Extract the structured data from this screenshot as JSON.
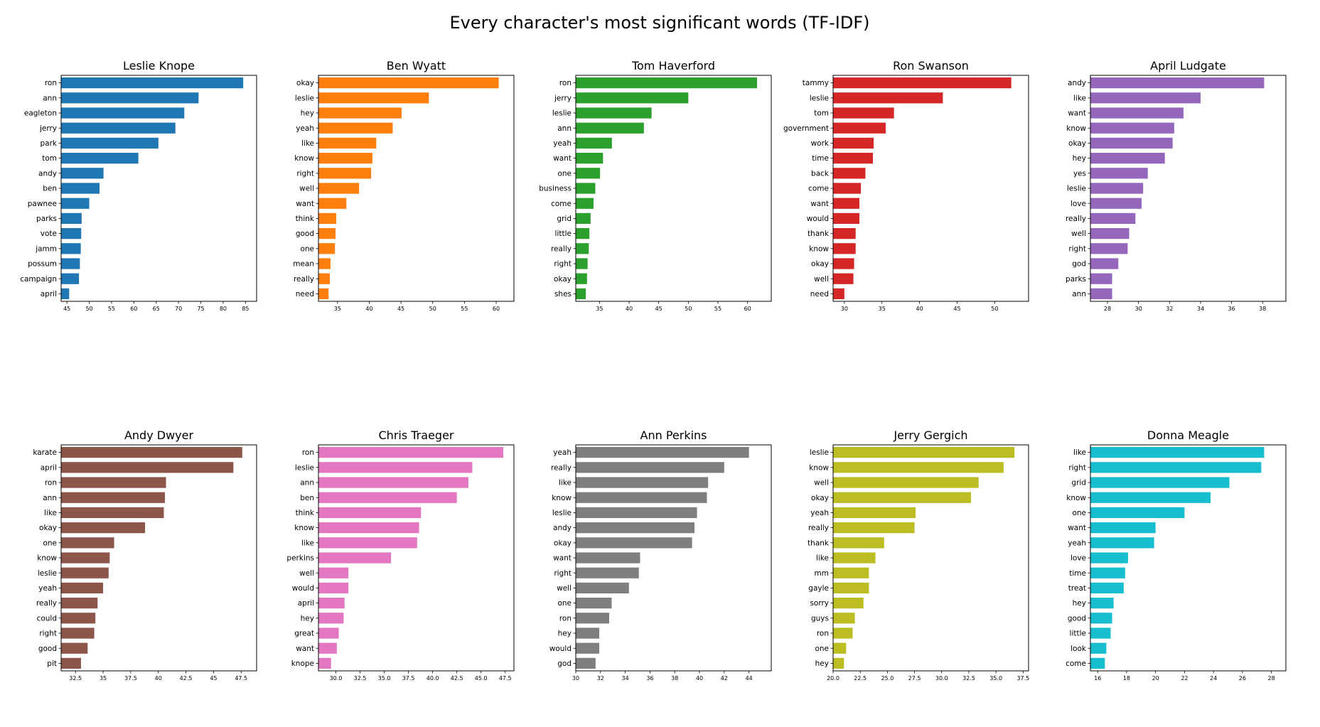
{
  "chart_data": {
    "title": "Every character's most significant words (TF-IDF)",
    "type": "bar",
    "orientation": "horizontal",
    "layout_grid": "2 rows x 5 columns",
    "charts": [
      {
        "type": "bar",
        "title": "Leslie Knope",
        "color": "#1f77b4",
        "categories": [
          "ron",
          "ann",
          "eagleton",
          "jerry",
          "park",
          "tom",
          "andy",
          "ben",
          "pawnee",
          "parks",
          "vote",
          "jamm",
          "possum",
          "campaign",
          "april"
        ],
        "values": [
          84.5,
          74.5,
          71.3,
          69.3,
          65.5,
          61.0,
          53.2,
          52.3,
          50.0,
          48.3,
          48.2,
          48.1,
          47.9,
          47.7,
          45.5
        ],
        "xlim": [
          43.7,
          87.5
        ],
        "xticks": [
          45,
          50,
          55,
          60,
          65,
          70,
          75,
          80,
          85
        ]
      },
      {
        "type": "bar",
        "title": "Ben Wyatt",
        "color": "#ff7f0e",
        "categories": [
          "okay",
          "leslie",
          "hey",
          "yeah",
          "like",
          "know",
          "right",
          "well",
          "want",
          "think",
          "good",
          "one",
          "mean",
          "really",
          "need"
        ],
        "values": [
          60.4,
          49.4,
          45.1,
          43.7,
          41.1,
          40.5,
          40.3,
          38.4,
          36.4,
          34.8,
          34.7,
          34.6,
          33.9,
          33.8,
          33.6
        ],
        "xlim": [
          32.0,
          62.8
        ],
        "xticks": [
          35,
          40,
          45,
          50,
          55,
          60
        ]
      },
      {
        "type": "bar",
        "title": "Tom Haverford",
        "color": "#2ca02c",
        "categories": [
          "ron",
          "jerry",
          "leslie",
          "ann",
          "yeah",
          "want",
          "one",
          "business",
          "come",
          "grid",
          "little",
          "really",
          "right",
          "okay",
          "shes"
        ],
        "values": [
          61.6,
          50.0,
          43.8,
          42.5,
          37.1,
          35.6,
          35.1,
          34.3,
          34.0,
          33.5,
          33.3,
          33.2,
          33.0,
          32.9,
          32.7
        ],
        "xlim": [
          31.0,
          64.0
        ],
        "xticks": [
          35,
          40,
          45,
          50,
          55,
          60
        ]
      },
      {
        "type": "bar",
        "title": "Ron Swanson",
        "color": "#d62728",
        "categories": [
          "tammy",
          "leslie",
          "tom",
          "government",
          "work",
          "time",
          "back",
          "come",
          "want",
          "would",
          "thank",
          "know",
          "okay",
          "well",
          "need"
        ],
        "values": [
          52.2,
          43.1,
          36.6,
          35.5,
          33.9,
          33.8,
          32.8,
          32.2,
          32.0,
          32.0,
          31.5,
          31.5,
          31.3,
          31.2,
          30.0
        ],
        "xlim": [
          28.5,
          54.5
        ],
        "xticks": [
          30,
          35,
          40,
          45,
          50
        ]
      },
      {
        "type": "bar",
        "title": "April Ludgate",
        "color": "#9467bd",
        "categories": [
          "andy",
          "like",
          "want",
          "know",
          "okay",
          "hey",
          "yes",
          "leslie",
          "love",
          "really",
          "well",
          "right",
          "god",
          "parks",
          "ann"
        ],
        "values": [
          38.1,
          34.0,
          32.9,
          32.3,
          32.2,
          31.7,
          30.6,
          30.3,
          30.2,
          29.8,
          29.4,
          29.3,
          28.7,
          28.3,
          28.3
        ],
        "xlim": [
          26.9,
          39.5
        ],
        "xticks": [
          28,
          30,
          32,
          34,
          36,
          38
        ]
      },
      {
        "type": "bar",
        "title": "Andy Dwyer",
        "color": "#8c564b",
        "categories": [
          "karate",
          "april",
          "ron",
          "ann",
          "like",
          "okay",
          "one",
          "know",
          "leslie",
          "yeah",
          "really",
          "could",
          "right",
          "good",
          "pit"
        ],
        "values": [
          47.6,
          46.8,
          40.7,
          40.6,
          40.5,
          38.8,
          36.0,
          35.6,
          35.5,
          35.0,
          34.5,
          34.3,
          34.2,
          33.6,
          33.0
        ],
        "xlim": [
          31.2,
          48.9
        ],
        "xticks": [
          32.5,
          35.0,
          37.5,
          40.0,
          42.5,
          45.0,
          47.5
        ]
      },
      {
        "type": "bar",
        "title": "Chris Traeger",
        "color": "#e377c2",
        "categories": [
          "ron",
          "leslie",
          "ann",
          "ben",
          "think",
          "know",
          "like",
          "perkins",
          "well",
          "would",
          "april",
          "hey",
          "great",
          "want",
          "knope"
        ],
        "values": [
          47.3,
          44.1,
          43.7,
          42.5,
          38.8,
          38.6,
          38.4,
          35.7,
          31.3,
          31.3,
          30.9,
          30.8,
          30.3,
          30.1,
          29.5
        ],
        "xlim": [
          28.2,
          48.4
        ],
        "xticks": [
          "30.0",
          "32.5",
          "35.0",
          "37.5",
          "40.0",
          "42.5",
          "45.0",
          "47.5"
        ]
      },
      {
        "type": "bar",
        "title": "Ann Perkins",
        "color": "#7f7f7f",
        "categories": [
          "yeah",
          "really",
          "like",
          "know",
          "leslie",
          "andy",
          "okay",
          "want",
          "right",
          "well",
          "one",
          "ron",
          "hey",
          "would",
          "god"
        ],
        "values": [
          44.0,
          42.0,
          40.7,
          40.6,
          39.8,
          39.6,
          39.4,
          35.2,
          35.1,
          34.3,
          32.9,
          32.7,
          31.9,
          31.9,
          31.6
        ],
        "xlim": [
          30.0,
          45.8
        ],
        "xticks": [
          30,
          32,
          34,
          36,
          38,
          40,
          42,
          44
        ]
      },
      {
        "type": "bar",
        "title": "Jerry Gergich",
        "color": "#bcbd22",
        "categories": [
          "leslie",
          "know",
          "well",
          "okay",
          "yeah",
          "really",
          "thank",
          "like",
          "mm",
          "gayle",
          "sorry",
          "guys",
          "ron",
          "one",
          "hey"
        ],
        "values": [
          36.7,
          35.7,
          33.4,
          32.7,
          27.6,
          27.5,
          24.7,
          23.9,
          23.3,
          23.3,
          22.8,
          22.0,
          21.8,
          21.2,
          21.0
        ],
        "xlim": [
          20.0,
          38.0
        ],
        "xticks": [
          "20.0",
          "22.5",
          "25.0",
          "27.5",
          "30.0",
          "32.5",
          "35.0",
          "37.5"
        ]
      },
      {
        "type": "bar",
        "title": "Donna Meagle",
        "color": "#17becf",
        "categories": [
          "like",
          "right",
          "grid",
          "know",
          "one",
          "want",
          "yeah",
          "love",
          "time",
          "treat",
          "hey",
          "good",
          "little",
          "look",
          "come"
        ],
        "values": [
          27.5,
          27.3,
          25.1,
          23.8,
          22.0,
          20.0,
          19.9,
          18.1,
          17.9,
          17.8,
          17.1,
          17.0,
          16.9,
          16.6,
          16.5
        ],
        "xlim": [
          15.5,
          29.0
        ],
        "xticks": [
          16,
          18,
          20,
          22,
          24,
          26,
          28
        ]
      }
    ]
  }
}
